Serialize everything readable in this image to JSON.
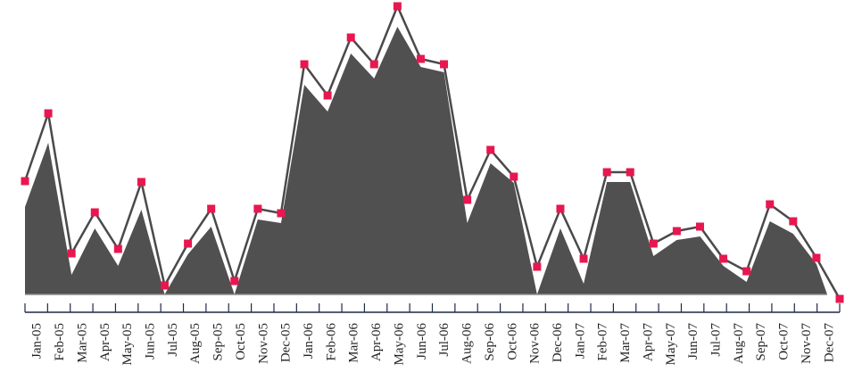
{
  "chart_data": {
    "type": "area",
    "title": "",
    "xlabel": "",
    "ylabel": "",
    "grid": false,
    "legend": "none",
    "categories": [
      "Jan-05",
      "Feb-05",
      "Mar-05",
      "Apr-05",
      "May-05",
      "Jun-05",
      "Jul-05",
      "Aug-05",
      "Sep-05",
      "Oct-05",
      "Nov-05",
      "Dec-05",
      "Jan-06",
      "Feb-06",
      "Mar-06",
      "Apr-06",
      "May-06",
      "Jun-06",
      "Jul-06",
      "Aug-06",
      "Sep-06",
      "Oct-06",
      "Nov-06",
      "Dec-06",
      "Jan-07",
      "Feb-07",
      "Mar-07",
      "Apr-07",
      "May-07",
      "Jun-07",
      "Jul-07",
      "Aug-07",
      "Sep-07",
      "Oct-07",
      "Nov-07",
      "Dec-07"
    ],
    "ylim": [
      0,
      330
    ],
    "series": [
      {
        "kind": "line-markers",
        "color": "#4a4a4a",
        "marker_color": "#e8174f",
        "values": [
          132,
          208,
          51,
          97,
          56,
          131,
          15,
          62,
          101,
          20,
          101,
          96,
          263,
          228,
          293,
          263,
          328,
          269,
          263,
          111,
          167,
          137,
          36,
          101,
          45,
          142,
          142,
          62,
          76,
          81,
          45,
          31,
          106,
          87,
          46,
          0
        ]
      },
      {
        "kind": "area",
        "color": "#505050",
        "values": [
          98,
          170,
          22,
          74,
          32,
          95,
          0,
          45,
          76,
          0,
          84,
          80,
          235,
          205,
          270,
          242,
          300,
          255,
          249,
          80,
          147,
          125,
          0,
          74,
          12,
          126,
          126,
          43,
          61,
          65,
          32,
          14,
          82,
          68,
          34,
          0
        ]
      }
    ]
  }
}
